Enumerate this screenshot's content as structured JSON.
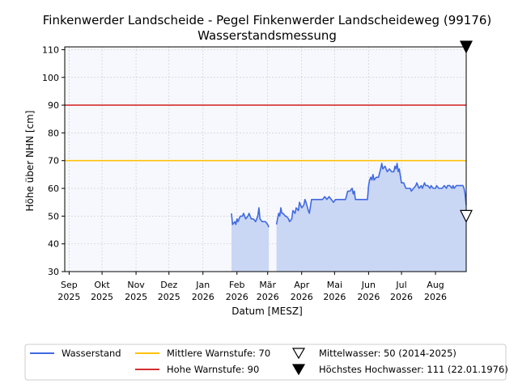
{
  "chart_data": {
    "type": "area",
    "title": "Finkenwerder Landscheide - Pegel Finkenwerder Landscheideweg (99176)",
    "subtitle": "Wasserstandsmessung",
    "xlabel": "Datum [MESZ]",
    "ylabel": "Höhe über NHN [cm]",
    "ylim": [
      30,
      111
    ],
    "yticks": [
      30,
      40,
      50,
      60,
      70,
      80,
      90,
      100,
      110
    ],
    "xlim": [
      "2025-08-28",
      "2026-08-29"
    ],
    "xticks": [
      {
        "date": "2025-09-01",
        "label": [
          "Sep",
          "2025"
        ]
      },
      {
        "date": "2025-10-01",
        "label": [
          "Okt",
          "2025"
        ]
      },
      {
        "date": "2025-11-01",
        "label": [
          "Nov",
          "2025"
        ]
      },
      {
        "date": "2025-12-01",
        "label": [
          "Dez",
          "2025"
        ]
      },
      {
        "date": "2026-01-01",
        "label": [
          "Jan",
          "2026"
        ]
      },
      {
        "date": "2026-02-01",
        "label": [
          "Feb",
          "2026"
        ]
      },
      {
        "date": "2026-03-01",
        "label": [
          "Mär",
          "2026"
        ]
      },
      {
        "date": "2026-04-01",
        "label": [
          "Apr",
          "2026"
        ]
      },
      {
        "date": "2026-05-01",
        "label": [
          "Mai",
          "2026"
        ]
      },
      {
        "date": "2026-06-01",
        "label": [
          "Jun",
          "2026"
        ]
      },
      {
        "date": "2026-07-01",
        "label": [
          "Jul",
          "2026"
        ]
      },
      {
        "date": "2026-08-01",
        "label": [
          "Aug",
          "2026"
        ]
      }
    ],
    "grid": true,
    "legend_position": "bottom",
    "series": [
      {
        "name": "Wasserstand",
        "color": "#4169e1",
        "fill": "#c9d7f5",
        "segments": [
          [
            [
              "2026-01-27",
              51
            ],
            [
              "2026-01-28",
              47
            ],
            [
              "2026-01-30",
              48
            ],
            [
              "2026-01-31",
              47
            ],
            [
              "2026-02-01",
              49
            ],
            [
              "2026-02-02",
              48
            ],
            [
              "2026-02-04",
              50
            ],
            [
              "2026-02-06",
              50
            ],
            [
              "2026-02-07",
              51
            ],
            [
              "2026-02-09",
              49
            ],
            [
              "2026-02-11",
              50
            ],
            [
              "2026-02-12",
              51
            ],
            [
              "2026-02-14",
              49
            ],
            [
              "2026-02-16",
              49
            ],
            [
              "2026-02-18",
              48
            ],
            [
              "2026-02-20",
              50
            ],
            [
              "2026-02-21",
              53
            ],
            [
              "2026-02-22",
              49
            ],
            [
              "2026-02-24",
              48
            ],
            [
              "2026-02-25",
              48
            ],
            [
              "2026-02-27",
              48
            ],
            [
              "2026-03-01",
              47
            ],
            [
              "2026-03-02",
              46
            ]
          ],
          [
            [
              "2026-03-09",
              47
            ],
            [
              "2026-03-10",
              49
            ],
            [
              "2026-03-11",
              51
            ],
            [
              "2026-03-12",
              50
            ],
            [
              "2026-03-13",
              53
            ],
            [
              "2026-03-14",
              51
            ],
            [
              "2026-03-15",
              51
            ],
            [
              "2026-03-17",
              50
            ],
            [
              "2026-03-18",
              50
            ],
            [
              "2026-03-20",
              49
            ],
            [
              "2026-03-21",
              48
            ],
            [
              "2026-03-23",
              49
            ],
            [
              "2026-03-24",
              52
            ],
            [
              "2026-03-26",
              51
            ],
            [
              "2026-03-27",
              53
            ],
            [
              "2026-03-29",
              52
            ],
            [
              "2026-03-30",
              55
            ],
            [
              "2026-04-01",
              53
            ],
            [
              "2026-04-03",
              54
            ],
            [
              "2026-04-04",
              56
            ],
            [
              "2026-04-05",
              55
            ],
            [
              "2026-04-07",
              52
            ],
            [
              "2026-04-08",
              51
            ],
            [
              "2026-04-10",
              56
            ],
            [
              "2026-04-12",
              56
            ],
            [
              "2026-04-14",
              56
            ],
            [
              "2026-04-16",
              56
            ],
            [
              "2026-04-18",
              56
            ],
            [
              "2026-04-20",
              56
            ],
            [
              "2026-04-22",
              57
            ],
            [
              "2026-04-24",
              56
            ],
            [
              "2026-04-26",
              57
            ],
            [
              "2026-04-28",
              56
            ],
            [
              "2026-04-30",
              55
            ],
            [
              "2026-05-02",
              56
            ],
            [
              "2026-05-04",
              56
            ],
            [
              "2026-05-06",
              56
            ],
            [
              "2026-05-08",
              56
            ],
            [
              "2026-05-10",
              56
            ],
            [
              "2026-05-11",
              56
            ],
            [
              "2026-05-13",
              59
            ],
            [
              "2026-05-15",
              59
            ],
            [
              "2026-05-17",
              60
            ],
            [
              "2026-05-18",
              58
            ],
            [
              "2026-05-19",
              59
            ],
            [
              "2026-05-20",
              56
            ],
            [
              "2026-05-22",
              56
            ],
            [
              "2026-05-24",
              56
            ],
            [
              "2026-05-27",
              56
            ],
            [
              "2026-05-29",
              56
            ],
            [
              "2026-05-31",
              56
            ],
            [
              "2026-06-01",
              61
            ],
            [
              "2026-06-02",
              63
            ],
            [
              "2026-06-03",
              64
            ],
            [
              "2026-06-04",
              63
            ],
            [
              "2026-06-05",
              65
            ],
            [
              "2026-06-06",
              63
            ],
            [
              "2026-06-08",
              64
            ],
            [
              "2026-06-10",
              64
            ],
            [
              "2026-06-12",
              67
            ],
            [
              "2026-06-13",
              69
            ],
            [
              "2026-06-14",
              67
            ],
            [
              "2026-06-16",
              68
            ],
            [
              "2026-06-18",
              66
            ],
            [
              "2026-06-20",
              67
            ],
            [
              "2026-06-22",
              66
            ],
            [
              "2026-06-24",
              66
            ],
            [
              "2026-06-25",
              68
            ],
            [
              "2026-06-26",
              67
            ],
            [
              "2026-06-27",
              69
            ],
            [
              "2026-06-28",
              66
            ],
            [
              "2026-06-29",
              67
            ],
            [
              "2026-07-01",
              62
            ],
            [
              "2026-07-03",
              62
            ],
            [
              "2026-07-04",
              61
            ],
            [
              "2026-07-05",
              60
            ],
            [
              "2026-07-07",
              60
            ],
            [
              "2026-07-09",
              60
            ],
            [
              "2026-07-10",
              59
            ],
            [
              "2026-07-12",
              60
            ],
            [
              "2026-07-14",
              61
            ],
            [
              "2026-07-15",
              62
            ],
            [
              "2026-07-16",
              61
            ],
            [
              "2026-07-17",
              60
            ],
            [
              "2026-07-19",
              61
            ],
            [
              "2026-07-20",
              60
            ],
            [
              "2026-07-22",
              62
            ],
            [
              "2026-07-23",
              61
            ],
            [
              "2026-07-25",
              61
            ],
            [
              "2026-07-27",
              60
            ],
            [
              "2026-07-28",
              61
            ],
            [
              "2026-07-30",
              60
            ],
            [
              "2026-08-01",
              60
            ],
            [
              "2026-08-02",
              61
            ],
            [
              "2026-08-04",
              60
            ],
            [
              "2026-08-05",
              60
            ],
            [
              "2026-08-07",
              60
            ],
            [
              "2026-08-09",
              61
            ],
            [
              "2026-08-11",
              60
            ],
            [
              "2026-08-12",
              61
            ],
            [
              "2026-08-14",
              61
            ],
            [
              "2026-08-16",
              60
            ],
            [
              "2026-08-17",
              61
            ],
            [
              "2026-08-18",
              60
            ],
            [
              "2026-08-20",
              61
            ],
            [
              "2026-08-22",
              61
            ],
            [
              "2026-08-24",
              61
            ],
            [
              "2026-08-26",
              61
            ],
            [
              "2026-08-27",
              60
            ],
            [
              "2026-08-28",
              58
            ],
            [
              "2026-08-29",
              54
            ]
          ]
        ]
      }
    ],
    "reference_lines": [
      {
        "name": "Mittlere Warnstufe: 70",
        "value": 70,
        "color": "#ffc107"
      },
      {
        "name": "Hohe Warnstufe: 90",
        "value": 90,
        "color": "#d32f2f"
      }
    ],
    "markers": [
      {
        "name": "Mittelwasser: 50 (2014-2025)",
        "value": 50,
        "style": "triangle-down-open"
      },
      {
        "name": "Höchstes Hochwasser: 111 (22.01.1976)",
        "value": 111,
        "style": "triangle-down-filled"
      }
    ],
    "colors": {
      "plot_background": "#f7f8fd",
      "grid": "#cfcfcf"
    }
  }
}
